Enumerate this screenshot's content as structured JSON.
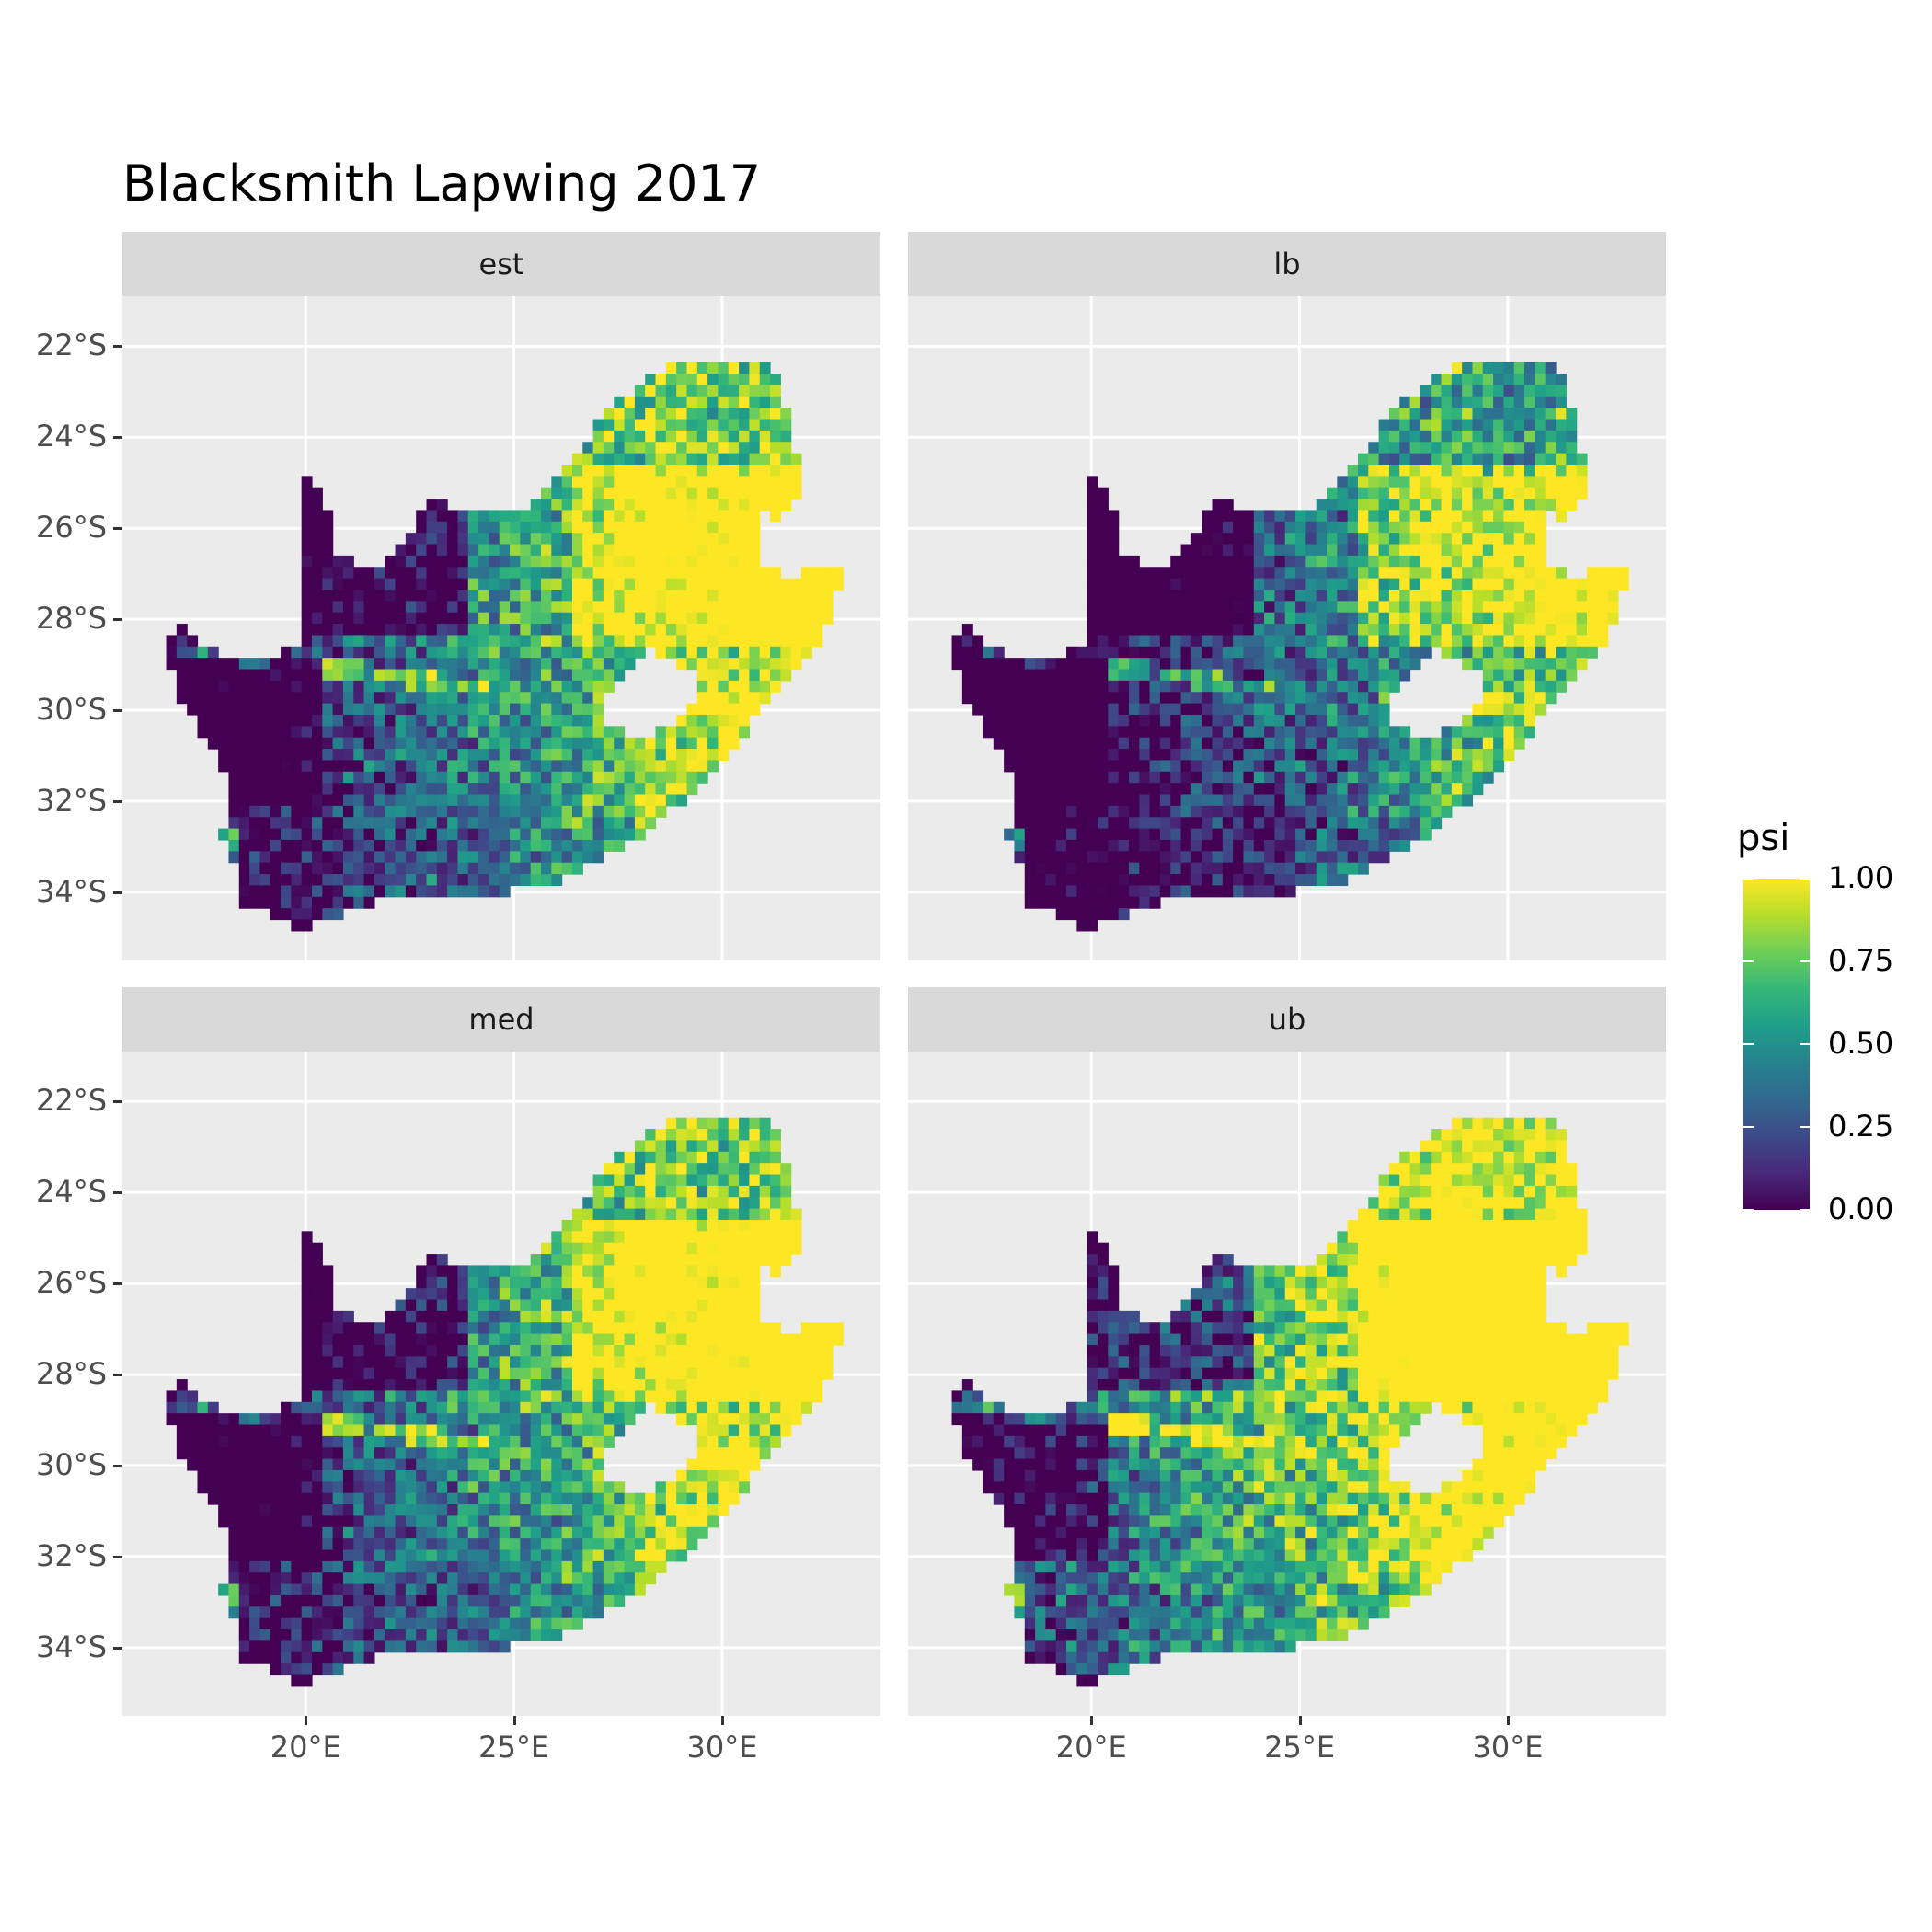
{
  "chart_data": {
    "type": "heatmap",
    "title": "Blacksmith Lapwing 2017",
    "facets": [
      "est",
      "lb",
      "med",
      "ub"
    ],
    "x_ticks": [
      {
        "value": 20,
        "label": "20°E"
      },
      {
        "value": 25,
        "label": "25°E"
      },
      {
        "value": 30,
        "label": "30°E"
      }
    ],
    "y_ticks": [
      {
        "value": -22,
        "label": "22°S"
      },
      {
        "value": -24,
        "label": "24°S"
      },
      {
        "value": -26,
        "label": "26°S"
      },
      {
        "value": -28,
        "label": "28°S"
      },
      {
        "value": -30,
        "label": "30°S"
      },
      {
        "value": -32,
        "label": "32°S"
      },
      {
        "value": -34,
        "label": "34°S"
      }
    ],
    "xlim": [
      15.6,
      33.8
    ],
    "ylim": [
      -35.5,
      -20.9
    ],
    "grid": true,
    "fill_scale": {
      "name": "psi",
      "palette": "viridis",
      "range": [
        0,
        1
      ],
      "breaks": [
        {
          "value": 0.0,
          "label": "0.00"
        },
        {
          "value": 0.25,
          "label": "0.25"
        },
        {
          "value": 0.5,
          "label": "0.50"
        },
        {
          "value": 0.75,
          "label": "0.75"
        },
        {
          "value": 1.0,
          "label": "1.00"
        }
      ]
    },
    "legend_position": "right"
  }
}
